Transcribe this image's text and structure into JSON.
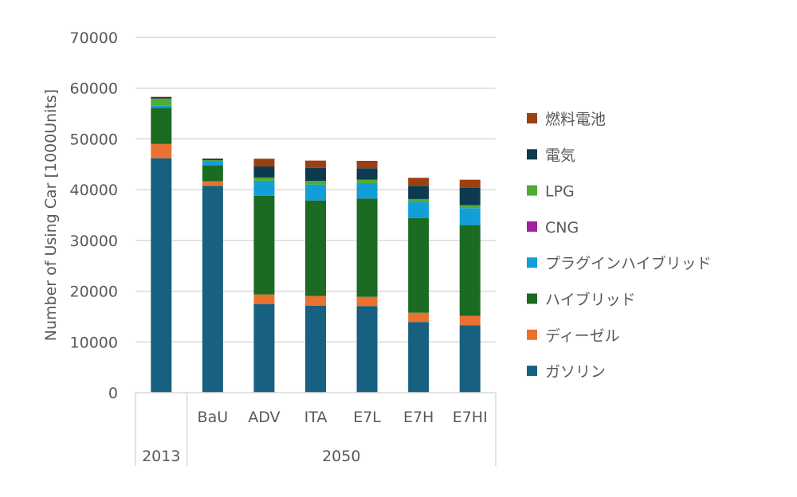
{
  "chart_data": {
    "type": "bar",
    "stacked": true,
    "title": "",
    "xlabel": "",
    "ylabel": "Number of Using Car [1000Units]",
    "ylim": [
      0,
      70000
    ],
    "yticks": [
      0,
      10000,
      20000,
      30000,
      40000,
      50000,
      60000,
      70000
    ],
    "grid": true,
    "legend_position": "right",
    "categories": [
      "",
      "BaU",
      "ADV",
      "ITA",
      "E7L",
      "E7H",
      "E7HI"
    ],
    "groups": [
      {
        "label": "2013",
        "categories": [
          0
        ]
      },
      {
        "label": "2050",
        "categories": [
          1,
          2,
          3,
          4,
          5,
          6
        ]
      }
    ],
    "series": [
      {
        "name": "ガソリン",
        "color": "#17607f",
        "values": [
          46200,
          40770,
          17470,
          17110,
          17060,
          13920,
          13300
        ]
      },
      {
        "name": "ディーゼル",
        "color": "#ea7130",
        "values": [
          2800,
          880,
          1890,
          1930,
          1830,
          1830,
          1820
        ]
      },
      {
        "name": "ハイブリッド",
        "color": "#1b6b23",
        "values": [
          7150,
          3140,
          19420,
          18840,
          19370,
          18630,
          17900
        ]
      },
      {
        "name": "プラグインハイブリッド",
        "color": "#129fd8",
        "values": [
          400,
          800,
          2980,
          3140,
          3030,
          3140,
          3350
        ]
      },
      {
        "name": "CNG",
        "color": "#a020a0",
        "values": [
          0,
          0,
          0,
          0,
          0,
          0,
          0
        ]
      },
      {
        "name": "LPG",
        "color": "#4fad32",
        "values": [
          1400,
          200,
          630,
          690,
          670,
          630,
          570
        ]
      },
      {
        "name": "電気",
        "color": "#0e3a50",
        "values": [
          300,
          300,
          2190,
          2560,
          2260,
          2620,
          3400
        ]
      },
      {
        "name": "燃料電池",
        "color": "#9b4010",
        "values": [
          50,
          50,
          1520,
          1460,
          1460,
          1570,
          1620
        ]
      }
    ]
  }
}
